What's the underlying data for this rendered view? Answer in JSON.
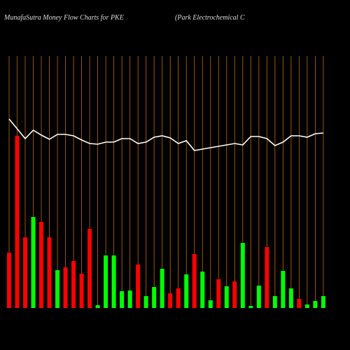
{
  "chart_data": {
    "type": "bar",
    "title": "MunafaSutra  Money Flow  Charts for PKE",
    "subtitle": "(Park Electrochemical C",
    "categories": [
      null,
      null,
      null,
      null,
      null,
      null,
      null,
      null,
      null,
      null,
      null,
      null,
      null,
      null,
      null,
      null,
      null,
      null,
      null,
      null,
      null,
      null,
      null,
      null,
      null,
      null,
      null,
      null,
      null,
      null,
      null,
      null,
      null,
      null,
      null,
      null,
      null,
      null,
      null,
      null
    ],
    "values": [
      79,
      246,
      101,
      130,
      123,
      101,
      54,
      58,
      67,
      49,
      113,
      4,
      75,
      75,
      24,
      25,
      62,
      17,
      30,
      56,
      21,
      28,
      48,
      77,
      52,
      11,
      41,
      31,
      38,
      93,
      3,
      32,
      87,
      17,
      53,
      28,
      13,
      5,
      10,
      17
    ],
    "colors": [
      "#ff0000",
      "#ff0000",
      "#ff0000",
      "#00ff00",
      "#ff0000",
      "#ff0000",
      "#00ff00",
      "#ff0000",
      "#ff0000",
      "#ff0000",
      "#ff0000",
      "#00ff00",
      "#00ff00",
      "#00ff00",
      "#00ff00",
      "#00ff00",
      "#ff0000",
      "#00ff00",
      "#00ff00",
      "#00ff00",
      "#ff0000",
      "#ff0000",
      "#00ff00",
      "#ff0000",
      "#00ff00",
      "#00ff00",
      "#ff0000",
      "#00ff00",
      "#ff0000",
      "#00ff00",
      "#00ff00",
      "#00ff00",
      "#ff0000",
      "#00ff00",
      "#00ff00",
      "#00ff00",
      "#ff0000",
      "#00ff00",
      "#00ff00",
      "#00ff00"
    ],
    "line": {
      "color": "#ffffff",
      "values": [
        270,
        256,
        242,
        254,
        247,
        241,
        248,
        248,
        246,
        240,
        235,
        234,
        237,
        237,
        242,
        242,
        235,
        237,
        244,
        246,
        243,
        235,
        239,
        225,
        227,
        229,
        231,
        233,
        235,
        233,
        245,
        245,
        242,
        232,
        237,
        246,
        246,
        244,
        249,
        250
      ]
    },
    "ylim": [
      0,
      360
    ],
    "grid_color": "#c06a10"
  }
}
